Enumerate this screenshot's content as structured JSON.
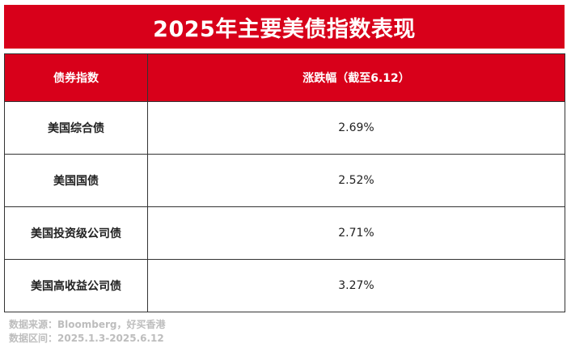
{
  "title": "2025年主要美债指数表现",
  "table": {
    "headers": [
      "债券指数",
      "涨跌幅（截至6.12）"
    ],
    "rows": [
      {
        "name": "美国综合债",
        "change": "2.69%"
      },
      {
        "name": "美国国债",
        "change": "2.52%"
      },
      {
        "name": "美国投资级公司债",
        "change": "2.71%"
      },
      {
        "name": "美国高收益公司债",
        "change": "3.27%"
      }
    ]
  },
  "footnote": {
    "source": "数据来源：Bloomberg，好买香港",
    "period": "数据区间：2025.1.3-2025.6.12"
  },
  "colors": {
    "accent": "#d8001a",
    "footnote": "#bdbdbd"
  }
}
